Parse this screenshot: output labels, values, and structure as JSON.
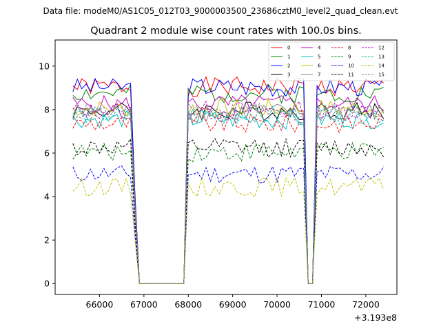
{
  "figure": {
    "suptitle": "Data file: modeM0/AS1C05_012T03_9000003500_23686cztM0_level2_quad_clean.evt"
  },
  "chart_data": {
    "type": "line",
    "title": "Quadrant 2 module wise count rates with 100.0s bins.",
    "xlabel": "",
    "ylabel": "",
    "offset_text": "+3.193e8",
    "xlim": [
      65000,
      72700
    ],
    "ylim": [
      -0.5,
      11.2
    ],
    "xticks": [
      66000,
      67000,
      68000,
      69000,
      70000,
      71000,
      72000
    ],
    "xtick_labels": [
      "66000",
      "67000",
      "68000",
      "69000",
      "70000",
      "71000",
      "72000"
    ],
    "yticks": [
      0,
      2,
      4,
      6,
      8,
      10
    ],
    "ytick_labels": [
      "0",
      "2",
      "4",
      "6",
      "8",
      "10"
    ],
    "grid": false,
    "legend_placement": "top-right",
    "legend_ncol": 4,
    "x_start": 65400,
    "bin": 100,
    "segments": [
      {
        "from": 65400,
        "to": 66800
      },
      {
        "from": 66850,
        "to": 67950
      },
      {
        "from": 68000,
        "to": 70650
      },
      {
        "from": 70700,
        "to": 70900
      },
      {
        "from": 70950,
        "to": 72450
      }
    ],
    "series": [
      {
        "name": "0",
        "color": "#ff0000",
        "dashed": false,
        "level": 9.05,
        "peak": 10.7,
        "seed": 1
      },
      {
        "name": "1",
        "color": "#008000",
        "dashed": false,
        "level": 8.75,
        "peak": 9.2,
        "seed": 2
      },
      {
        "name": "2",
        "color": "#0000ff",
        "dashed": false,
        "level": 9.05,
        "peak": 10.1,
        "seed": 3
      },
      {
        "name": "3",
        "color": "#000000",
        "dashed": false,
        "level": 7.95,
        "peak": 8.9,
        "seed": 4
      },
      {
        "name": "4",
        "color": "#bf00bf",
        "dashed": false,
        "level": 8.25,
        "peak": 9.2,
        "seed": 5
      },
      {
        "name": "5",
        "color": "#00bfbf",
        "dashed": false,
        "level": 7.55,
        "peak": 8.7,
        "seed": 6
      },
      {
        "name": "6",
        "color": "#bfbf00",
        "dashed": false,
        "level": 8.05,
        "peak": 9.0,
        "seed": 7
      },
      {
        "name": "7",
        "color": "#808080",
        "dashed": false,
        "level": 7.85,
        "peak": 8.6,
        "seed": 8
      },
      {
        "name": "8",
        "color": "#ff0000",
        "dashed": true,
        "level": 7.35,
        "peak": 7.9,
        "seed": 9
      },
      {
        "name": "9",
        "color": "#008000",
        "dashed": true,
        "level": 6.05,
        "peak": 6.9,
        "seed": 10
      },
      {
        "name": "10",
        "color": "#0000ff",
        "dashed": true,
        "level": 5.05,
        "peak": 5.7,
        "seed": 11
      },
      {
        "name": "11",
        "color": "#000000",
        "dashed": true,
        "level": 6.25,
        "peak": 7.0,
        "seed": 12
      },
      {
        "name": "12",
        "color": "#bf00bf",
        "dashed": true,
        "level": 7.95,
        "peak": 8.6,
        "seed": 13
      },
      {
        "name": "13",
        "color": "#00bfbf",
        "dashed": true,
        "level": 7.75,
        "peak": 8.6,
        "seed": 14
      },
      {
        "name": "14",
        "color": "#bfbf00",
        "dashed": true,
        "level": 4.45,
        "peak": 5.1,
        "seed": 15
      },
      {
        "name": "15",
        "color": "#808080",
        "dashed": true,
        "level": 7.85,
        "peak": 8.5,
        "seed": 16
      }
    ]
  }
}
